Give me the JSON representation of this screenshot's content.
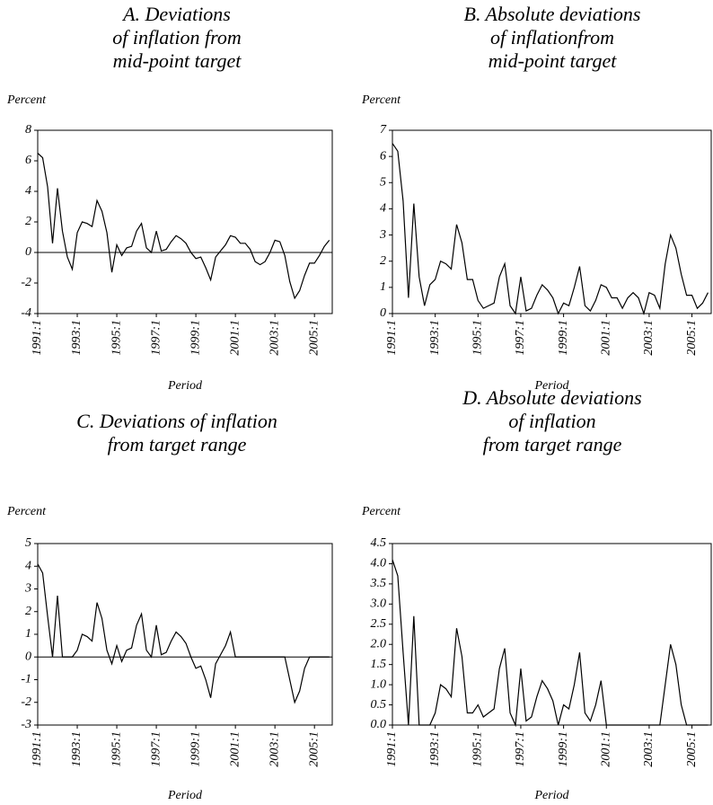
{
  "chart_data": [
    {
      "type": "line",
      "title": [
        "A. Deviations",
        "of inflation from",
        "mid-point target"
      ],
      "ylabel": "Percent",
      "xlabel": "Period",
      "color": "#000000",
      "categories": [
        "1991:1",
        null,
        null,
        null,
        null,
        null,
        null,
        null,
        "1993:1",
        null,
        null,
        null,
        null,
        null,
        null,
        null,
        "1995:1",
        null,
        null,
        null,
        null,
        null,
        null,
        null,
        "1997:1",
        null,
        null,
        null,
        null,
        null,
        null,
        null,
        "1999:1",
        null,
        null,
        null,
        null,
        null,
        null,
        null,
        "2001:1",
        null,
        null,
        null,
        null,
        null,
        null,
        null,
        "2003:1",
        null,
        null,
        null,
        null,
        null,
        null,
        null,
        "2005:1",
        null,
        null,
        null
      ],
      "values": [
        6.5,
        6.2,
        4.3,
        0.6,
        4.2,
        1.4,
        -0.3,
        -1.1,
        1.3,
        2.0,
        1.9,
        1.7,
        3.4,
        2.7,
        1.3,
        -1.3,
        0.5,
        -0.2,
        0.3,
        0.4,
        1.4,
        1.9,
        0.3,
        0.0,
        1.4,
        0.1,
        0.2,
        0.7,
        1.1,
        0.9,
        0.6,
        0.0,
        -0.4,
        -0.3,
        -1.0,
        -1.8,
        -0.3,
        0.1,
        0.5,
        1.1,
        1.0,
        0.6,
        0.6,
        0.2,
        -0.6,
        -0.8,
        -0.6,
        0.0,
        0.8,
        0.7,
        -0.2,
        -1.9,
        -3.0,
        -2.5,
        -1.5,
        -0.7,
        -0.7,
        -0.2,
        0.4,
        0.8
      ],
      "ylim": [
        -4,
        8
      ],
      "yticks": [
        -4,
        -2,
        0,
        2,
        4,
        6,
        8
      ]
    },
    {
      "type": "line",
      "title": [
        "B. Absolute deviations",
        "of inflationfrom",
        "mid-point target"
      ],
      "ylabel": "Percent",
      "xlabel": "Period",
      "color": "#000000",
      "categories": [
        "1991:1",
        null,
        null,
        null,
        null,
        null,
        null,
        null,
        "1993:1",
        null,
        null,
        null,
        null,
        null,
        null,
        null,
        "1995:1",
        null,
        null,
        null,
        null,
        null,
        null,
        null,
        "1997:1",
        null,
        null,
        null,
        null,
        null,
        null,
        null,
        "1999:1",
        null,
        null,
        null,
        null,
        null,
        null,
        null,
        "2001:1",
        null,
        null,
        null,
        null,
        null,
        null,
        null,
        "2003:1",
        null,
        null,
        null,
        null,
        null,
        null,
        null,
        "2005:1",
        null,
        null,
        null
      ],
      "values": [
        6.5,
        6.2,
        4.3,
        0.6,
        4.2,
        1.4,
        0.3,
        1.1,
        1.3,
        2.0,
        1.9,
        1.7,
        3.4,
        2.7,
        1.3,
        1.3,
        0.5,
        0.2,
        0.3,
        0.4,
        1.4,
        1.9,
        0.3,
        0.0,
        1.4,
        0.1,
        0.2,
        0.7,
        1.1,
        0.9,
        0.6,
        0.0,
        0.4,
        0.3,
        1.0,
        1.8,
        0.3,
        0.1,
        0.5,
        1.1,
        1.0,
        0.6,
        0.6,
        0.2,
        0.6,
        0.8,
        0.6,
        0.0,
        0.8,
        0.7,
        0.2,
        1.9,
        3.0,
        2.5,
        1.5,
        0.7,
        0.7,
        0.2,
        0.4,
        0.8
      ],
      "ylim": [
        0,
        7
      ],
      "yticks": [
        0,
        1,
        2,
        3,
        4,
        5,
        6,
        7
      ]
    },
    {
      "type": "line",
      "title": [
        "C. Deviations of inflation",
        "from target range"
      ],
      "ylabel": "Percent",
      "xlabel": "Period",
      "color": "#000000",
      "categories": [
        "1991:1",
        null,
        null,
        null,
        null,
        null,
        null,
        null,
        "1993:1",
        null,
        null,
        null,
        null,
        null,
        null,
        null,
        "1995:1",
        null,
        null,
        null,
        null,
        null,
        null,
        null,
        "1997:1",
        null,
        null,
        null,
        null,
        null,
        null,
        null,
        "1999:1",
        null,
        null,
        null,
        null,
        null,
        null,
        null,
        "2001:1",
        null,
        null,
        null,
        null,
        null,
        null,
        null,
        "2003:1",
        null,
        null,
        null,
        null,
        null,
        null,
        null,
        "2005:1",
        null,
        null,
        null
      ],
      "values": [
        4.1,
        3.7,
        1.8,
        0.0,
        2.7,
        0.0,
        0.0,
        0.0,
        0.3,
        1.0,
        0.9,
        0.7,
        2.4,
        1.7,
        0.3,
        -0.3,
        0.5,
        -0.2,
        0.3,
        0.4,
        1.4,
        1.9,
        0.3,
        0.0,
        1.4,
        0.1,
        0.2,
        0.7,
        1.1,
        0.9,
        0.6,
        0.0,
        -0.5,
        -0.4,
        -1.0,
        -1.8,
        -0.3,
        0.1,
        0.5,
        1.1,
        0.0,
        0.0,
        0.0,
        0.0,
        0.0,
        0.0,
        0.0,
        0.0,
        0.0,
        0.0,
        0.0,
        -1.0,
        -2.0,
        -1.5,
        -0.5,
        0.0,
        0.0,
        0.0,
        0.0,
        0.0
      ],
      "ylim": [
        -3,
        5
      ],
      "yticks": [
        -3,
        -2,
        -1,
        0,
        1,
        2,
        3,
        4,
        5
      ]
    },
    {
      "type": "line",
      "title": [
        "D. Absolute deviations",
        "of inflation",
        "from target range"
      ],
      "ylabel": "Percent",
      "xlabel": "Period",
      "color": "#000000",
      "categories": [
        "1991:1",
        null,
        null,
        null,
        null,
        null,
        null,
        null,
        "1993:1",
        null,
        null,
        null,
        null,
        null,
        null,
        null,
        "1995:1",
        null,
        null,
        null,
        null,
        null,
        null,
        null,
        "1997:1",
        null,
        null,
        null,
        null,
        null,
        null,
        null,
        "1999:1",
        null,
        null,
        null,
        null,
        null,
        null,
        null,
        "2001:1",
        null,
        null,
        null,
        null,
        null,
        null,
        null,
        "2003:1",
        null,
        null,
        null,
        null,
        null,
        null,
        null,
        "2005:1",
        null,
        null,
        null
      ],
      "values": [
        4.1,
        3.7,
        1.8,
        0.0,
        2.7,
        0.0,
        0.0,
        0.0,
        0.3,
        1.0,
        0.9,
        0.7,
        2.4,
        1.7,
        0.3,
        0.3,
        0.5,
        0.2,
        0.3,
        0.4,
        1.4,
        1.9,
        0.3,
        0.0,
        1.4,
        0.1,
        0.2,
        0.7,
        1.1,
        0.9,
        0.6,
        0.0,
        0.5,
        0.4,
        1.0,
        1.8,
        0.3,
        0.1,
        0.5,
        1.1,
        0.0,
        0.0,
        0.0,
        0.0,
        0.0,
        0.0,
        0.0,
        0.0,
        0.0,
        0.0,
        0.0,
        1.0,
        2.0,
        1.5,
        0.5,
        0.0,
        0.0,
        0.0,
        0.0,
        0.0
      ],
      "ylim": [
        0,
        4.5
      ],
      "yticks": [
        {
          "value": 0,
          "label": "0.0"
        },
        0.5,
        {
          "value": 1,
          "label": "1.0"
        },
        1.5,
        {
          "value": 2,
          "label": "2.0"
        },
        2.5,
        {
          "value": 3,
          "label": "3.0"
        },
        3.5,
        {
          "value": 4,
          "label": "4.0"
        },
        4.5
      ]
    }
  ]
}
